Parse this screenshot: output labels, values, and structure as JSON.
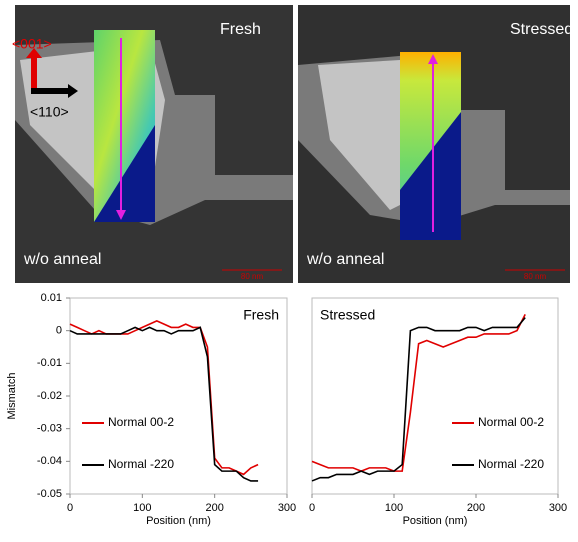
{
  "images": [
    {
      "label": "Fresh",
      "condition": "w/o anneal",
      "scale": "80 nm",
      "axes": [
        "<001>",
        "<110>"
      ]
    },
    {
      "label": "Stressed",
      "condition": "w/o anneal",
      "scale": "80 nm"
    }
  ],
  "chart_data": [
    {
      "type": "line",
      "annotation": "Fresh",
      "y_label": "Mismatch",
      "x_label": "Position (nm)",
      "x": [
        0,
        10,
        20,
        30,
        40,
        50,
        60,
        70,
        80,
        90,
        100,
        110,
        120,
        130,
        140,
        150,
        160,
        170,
        180,
        190,
        200,
        210,
        220,
        230,
        240,
        250,
        260
      ],
      "series": [
        {
          "name": "Normal 00-2",
          "color": "#e00000",
          "values": [
            0.002,
            0.001,
            0,
            -0.001,
            0,
            -0.001,
            -0.001,
            -0.001,
            -0.001,
            0,
            0.001,
            0.002,
            0.003,
            0.002,
            0.001,
            0.001,
            0.002,
            0.001,
            0.001,
            -0.005,
            -0.039,
            -0.042,
            -0.042,
            -0.043,
            -0.044,
            -0.042,
            -0.041
          ]
        },
        {
          "name": "Normal -220",
          "color": "#000000",
          "values": [
            0,
            -0.001,
            -0.001,
            -0.001,
            -0.001,
            -0.001,
            -0.001,
            -0.001,
            0,
            0.001,
            0,
            0.001,
            0,
            0,
            -0.001,
            0,
            0,
            0,
            0.001,
            -0.008,
            -0.041,
            -0.043,
            -0.043,
            -0.043,
            -0.045,
            -0.046,
            -0.046
          ]
        }
      ],
      "xlim": [
        0,
        300
      ],
      "xticks": [
        0,
        100,
        200,
        300
      ],
      "ylim": [
        -0.05,
        0.01
      ],
      "yticks": [
        0.01,
        0,
        -0.01,
        -0.02,
        -0.03,
        -0.04,
        -0.05
      ],
      "legend": "lower left"
    },
    {
      "type": "line",
      "annotation": "Stressed",
      "x_label": "Position (nm)",
      "x": [
        0,
        10,
        20,
        30,
        40,
        50,
        60,
        70,
        80,
        90,
        100,
        110,
        120,
        130,
        140,
        150,
        160,
        170,
        180,
        190,
        200,
        210,
        220,
        230,
        240,
        250,
        260
      ],
      "series": [
        {
          "name": "Normal 00-2",
          "color": "#e00000",
          "values": [
            -0.04,
            -0.041,
            -0.042,
            -0.042,
            -0.042,
            -0.042,
            -0.043,
            -0.042,
            -0.042,
            -0.042,
            -0.043,
            -0.043,
            -0.025,
            -0.004,
            -0.003,
            -0.004,
            -0.005,
            -0.004,
            -0.003,
            -0.002,
            -0.002,
            -0.001,
            -0.001,
            -0.001,
            -0.001,
            0,
            0.005
          ]
        },
        {
          "name": "Normal -220",
          "color": "#000000",
          "values": [
            -0.046,
            -0.045,
            -0.045,
            -0.044,
            -0.044,
            -0.044,
            -0.043,
            -0.044,
            -0.043,
            -0.043,
            -0.043,
            -0.041,
            0,
            0.001,
            0.001,
            0,
            0,
            0,
            0,
            0.001,
            0.001,
            0,
            0.001,
            0.001,
            0.001,
            0.001,
            0.004
          ]
        }
      ],
      "xlim": [
        0,
        300
      ],
      "xticks": [
        0,
        100,
        200,
        300
      ],
      "ylim": [
        -0.05,
        0.01
      ],
      "legend": "lower right"
    }
  ]
}
